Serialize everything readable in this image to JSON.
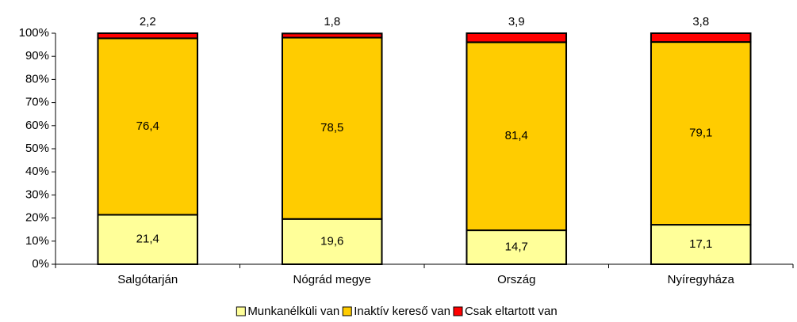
{
  "chart_data": {
    "type": "stacked_bar",
    "categories": [
      "Salgótarján",
      "Nógrád megye",
      "Ország",
      "Nyíregyháza"
    ],
    "series": [
      {
        "name": "Munkanélküli van",
        "color": "#ffff99",
        "values": [
          21.4,
          19.6,
          14.7,
          17.1
        ],
        "value_labels": [
          "21,4",
          "19,6",
          "14,7",
          "17,1"
        ]
      },
      {
        "name": "Inaktív kereső van",
        "color": "#ffcc00",
        "values": [
          76.4,
          78.5,
          81.4,
          79.1
        ],
        "value_labels": [
          "76,4",
          "78,5",
          "81,4",
          "79,1"
        ]
      },
      {
        "name": "Csak eltartott van",
        "color": "#ff0000",
        "values": [
          2.2,
          1.8,
          3.9,
          3.8
        ],
        "value_labels": [
          "2,2",
          "1,8",
          "3,9",
          "3,8"
        ]
      }
    ],
    "ylim": [
      0,
      100
    ],
    "yticks": [
      {
        "value": 0,
        "label": "0%"
      },
      {
        "value": 10,
        "label": "10%"
      },
      {
        "value": 20,
        "label": "20%"
      },
      {
        "value": 30,
        "label": "30%"
      },
      {
        "value": 40,
        "label": "40%"
      },
      {
        "value": 50,
        "label": "50%"
      },
      {
        "value": 60,
        "label": "60%"
      },
      {
        "value": 70,
        "label": "70%"
      },
      {
        "value": 80,
        "label": "80%"
      },
      {
        "value": 90,
        "label": "90%"
      },
      {
        "value": 100,
        "label": "100%"
      }
    ],
    "legend": "bottom"
  }
}
